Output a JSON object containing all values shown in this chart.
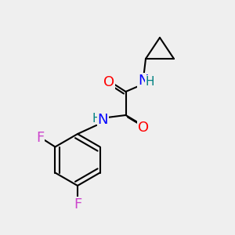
{
  "background_color": "#efefef",
  "bond_color": "#000000",
  "bond_width": 1.5,
  "atom_colors": {
    "O": "#ff0000",
    "N": "#0000ff",
    "F": "#cc44cc",
    "H_on_N_upper": "#008080",
    "H_on_N_lower": "#008080",
    "C": "#000000"
  },
  "font_size_atoms": 13,
  "font_size_H": 11
}
